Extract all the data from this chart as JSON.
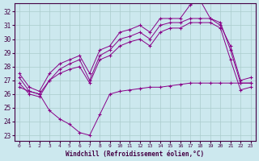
{
  "background_color": "#cce8ee",
  "grid_color": "#aacccc",
  "line_color": "#880088",
  "xlabel": "Windchill (Refroidissement éolien,°C)",
  "ylabel_ticks": [
    23,
    24,
    25,
    26,
    27,
    28,
    29,
    30,
    31,
    32
  ],
  "xlim": [
    -0.5,
    23.5
  ],
  "ylim": [
    22.6,
    32.6
  ],
  "xticks": [
    0,
    1,
    2,
    3,
    4,
    5,
    6,
    7,
    8,
    9,
    10,
    11,
    12,
    13,
    14,
    15,
    16,
    17,
    18,
    19,
    20,
    21,
    22,
    23
  ],
  "series": [
    {
      "x": [
        0,
        1,
        2,
        3,
        4,
        5,
        6,
        7,
        8,
        9,
        10,
        11,
        12,
        13,
        14,
        15,
        16,
        17,
        18,
        19,
        20,
        21,
        22,
        23
      ],
      "y": [
        27.5,
        26.5,
        26.2,
        27.5,
        28.2,
        28.5,
        28.8,
        27.5,
        29.2,
        29.5,
        30.5,
        30.7,
        31.0,
        30.5,
        31.5,
        31.5,
        31.5,
        32.5,
        32.8,
        31.5,
        31.0,
        29.5,
        27.0,
        27.2
      ]
    },
    {
      "x": [
        0,
        1,
        2,
        3,
        4,
        5,
        6,
        7,
        8,
        9,
        10,
        11,
        12,
        13,
        14,
        15,
        16,
        17,
        18,
        19,
        20,
        21,
        22,
        23
      ],
      "y": [
        27.2,
        26.2,
        26.0,
        27.0,
        27.8,
        28.2,
        28.5,
        27.0,
        28.8,
        29.2,
        30.0,
        30.2,
        30.5,
        30.0,
        31.0,
        31.2,
        31.2,
        31.5,
        31.5,
        31.5,
        31.2,
        29.2,
        26.8,
        26.8
      ]
    },
    {
      "x": [
        0,
        1,
        2,
        3,
        4,
        5,
        6,
        7,
        8,
        9,
        10,
        11,
        12,
        13,
        14,
        15,
        16,
        17,
        18,
        19,
        20,
        21,
        22,
        23
      ],
      "y": [
        26.8,
        26.0,
        25.8,
        27.0,
        27.5,
        27.8,
        28.0,
        26.8,
        28.5,
        28.8,
        29.5,
        29.8,
        30.0,
        29.5,
        30.5,
        30.8,
        30.8,
        31.2,
        31.2,
        31.2,
        30.8,
        28.5,
        26.3,
        26.5
      ]
    },
    {
      "x": [
        0,
        1,
        2,
        3,
        4,
        5,
        6,
        7,
        8,
        9,
        10,
        11,
        12,
        13,
        14,
        15,
        16,
        17,
        18,
        19,
        20,
        21,
        22,
        23
      ],
      "y": [
        26.5,
        26.2,
        26.0,
        24.8,
        24.2,
        23.8,
        23.2,
        23.0,
        24.5,
        26.0,
        26.2,
        26.3,
        26.4,
        26.5,
        26.5,
        26.6,
        26.7,
        26.8,
        26.8,
        26.8,
        26.8,
        26.8,
        26.8,
        26.8
      ]
    }
  ]
}
